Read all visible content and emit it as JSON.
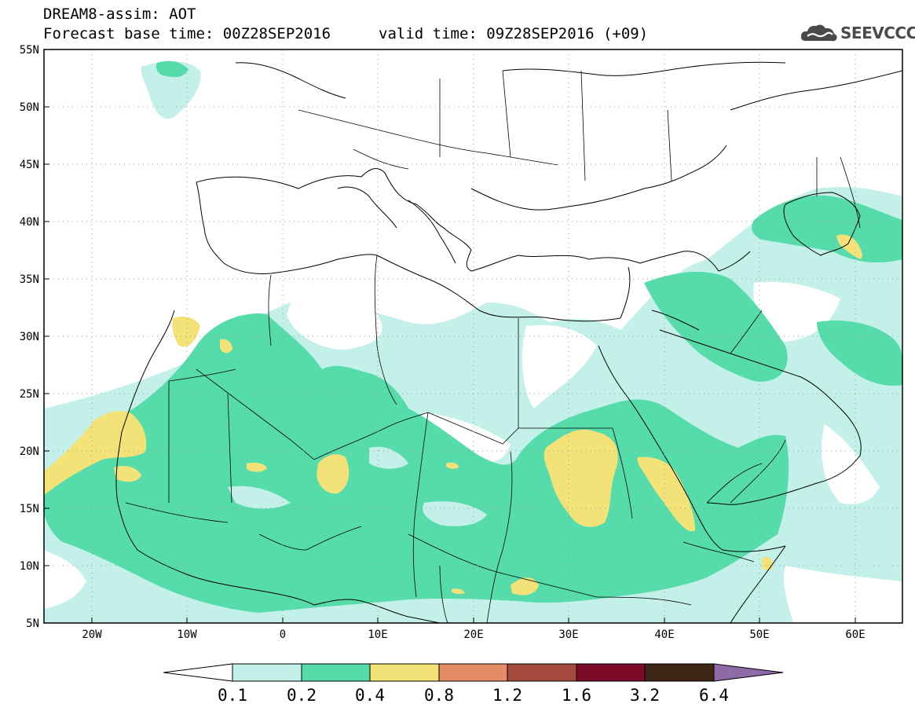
{
  "header": {
    "title": "DREAM8-assim: AOT",
    "base_time": "Forecast base time: 00Z28SEP2016",
    "valid_time": "valid time: 09Z28SEP2016 (+09)",
    "logo_text": "SEEVCCC",
    "logo_icon": "cloud-icon"
  },
  "map": {
    "lon_range": [
      -25,
      65
    ],
    "lat_range": [
      5,
      55
    ],
    "lat_labels": [
      "55N",
      "50N",
      "45N",
      "40N",
      "35N",
      "30N",
      "25N",
      "20N",
      "15N",
      "10N",
      "5N"
    ],
    "lon_labels": [
      "20W",
      "10W",
      "0",
      "10E",
      "20E",
      "30E",
      "40E",
      "50E",
      "60E"
    ],
    "grid": "dotted"
  },
  "colorbar": {
    "labels": [
      "0.1",
      "0.2",
      "0.4",
      "0.8",
      "1.2",
      "1.6",
      "3.2",
      "6.4"
    ],
    "colors": [
      "#ffffff",
      "#c4f0ea",
      "#55dcaa",
      "#f2e278",
      "#e58c66",
      "#a44a3c",
      "#7a0a28",
      "#3e2616",
      "#8e6aa6"
    ]
  }
}
